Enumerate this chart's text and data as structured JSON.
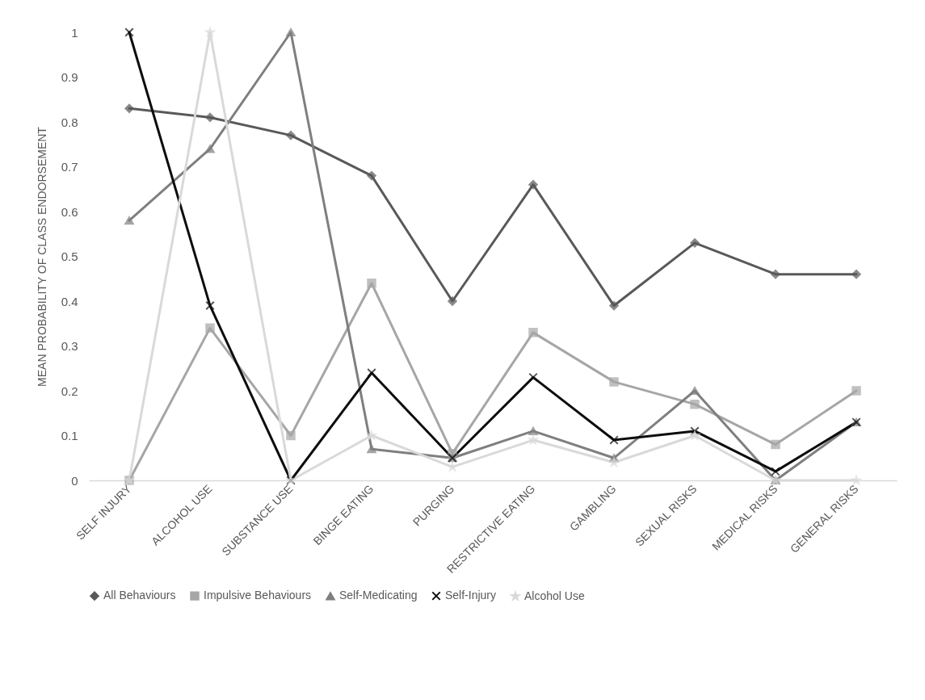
{
  "chart_data": {
    "type": "line",
    "ylabel": "MEAN PROBABILITY OF CLASS ENDORSEMENT",
    "categories": [
      "SELF INJURY",
      "ALCOHOL USE",
      "SUBSTANCE USE",
      "BINGE EATING",
      "PURGING",
      "RESTRICTIVE EATING",
      "GAMBLING",
      "SEXUAL RISKS",
      "MEDICAL RISKS",
      "GENERAL RISKS"
    ],
    "ylim": [
      0,
      1
    ],
    "yticks": [
      0,
      0.1,
      0.2,
      0.3,
      0.4,
      0.5,
      0.6,
      0.7,
      0.8,
      0.9,
      1
    ],
    "grid": false,
    "legend": "bottom",
    "line_style": "solid",
    "series": [
      {
        "name": "All Behaviours",
        "color": "#595959",
        "marker": "diamond",
        "values": [
          0.83,
          0.81,
          0.77,
          0.68,
          0.4,
          0.66,
          0.39,
          0.53,
          0.46,
          0.46
        ]
      },
      {
        "name": "Impulsive Behaviours",
        "color": "#a6a6a6",
        "marker": "square",
        "values": [
          0,
          0.34,
          0.1,
          0.44,
          0.06,
          0.33,
          0.22,
          0.17,
          0.08,
          0.2
        ]
      },
      {
        "name": "Self-Medicating",
        "color": "#7f7f7f",
        "marker": "triangle",
        "values": [
          0.58,
          0.74,
          1,
          0.07,
          0.05,
          0.11,
          0.05,
          0.2,
          0,
          0.13
        ]
      },
      {
        "name": "Self-Injury",
        "color": "#0d0d0d",
        "marker": "cross",
        "values": [
          1,
          0.39,
          0,
          0.24,
          0.05,
          0.23,
          0.09,
          0.11,
          0.02,
          0.13
        ]
      },
      {
        "name": "Alcohol Use",
        "color": "#d9d9d9",
        "marker": "star",
        "values": [
          0,
          1,
          0,
          0.1,
          0.03,
          0.09,
          0.04,
          0.1,
          0,
          0
        ]
      }
    ]
  }
}
